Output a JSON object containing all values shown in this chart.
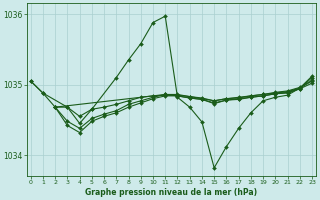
{
  "title": "Graphe pression niveau de la mer (hPa)",
  "bg_color": "#ceeaea",
  "grid_color": "#aacfcf",
  "line_color": "#1a5c1a",
  "marker": "D",
  "markersize": 2.0,
  "linewidth": 0.8,
  "ylim": [
    1033.7,
    1036.15
  ],
  "xlim": [
    -0.3,
    23.3
  ],
  "yticks": [
    1034,
    1035,
    1036
  ],
  "xticks": [
    0,
    1,
    2,
    3,
    4,
    5,
    6,
    7,
    8,
    9,
    10,
    11,
    12,
    13,
    14,
    15,
    16,
    17,
    18,
    19,
    20,
    21,
    22,
    23
  ],
  "series": [
    {
      "x": [
        0,
        1,
        2,
        3,
        4,
        5,
        6,
        7,
        8,
        9,
        10,
        11,
        12,
        13,
        14,
        15,
        16,
        17,
        18,
        19,
        20,
        21,
        22,
        23
      ],
      "y": [
        1035.05,
        1034.88,
        1034.68,
        1034.68,
        1034.55,
        1034.65,
        1034.68,
        1034.72,
        1034.77,
        1034.82,
        1034.84,
        1034.85,
        1034.85,
        1034.83,
        1034.8,
        1034.77,
        1034.8,
        1034.82,
        1034.84,
        1034.86,
        1034.88,
        1034.9,
        1034.95,
        1035.05
      ]
    },
    {
      "x": [
        0,
        1,
        3,
        4,
        5,
        7,
        8,
        9,
        10,
        11,
        12,
        13,
        14,
        15,
        16,
        17,
        18,
        19,
        20,
        21,
        22,
        23
      ],
      "y": [
        1035.05,
        1034.88,
        1034.68,
        1034.45,
        1034.65,
        1035.1,
        1035.35,
        1035.58,
        1035.88,
        1035.97,
        1034.82,
        1034.68,
        1034.47,
        1033.82,
        1034.12,
        1034.38,
        1034.6,
        1034.77,
        1034.82,
        1034.85,
        1034.95,
        1035.12
      ]
    },
    {
      "x": [
        2,
        3,
        4,
        5,
        6,
        7,
        8,
        9,
        10,
        11,
        12,
        13,
        14,
        15,
        16,
        17,
        18,
        19,
        20,
        21,
        22,
        23
      ],
      "y": [
        1034.68,
        1034.42,
        1034.32,
        1034.48,
        1034.55,
        1034.6,
        1034.68,
        1034.74,
        1034.8,
        1034.84,
        1034.84,
        1034.81,
        1034.79,
        1034.74,
        1034.78,
        1034.8,
        1034.82,
        1034.84,
        1034.87,
        1034.89,
        1034.94,
        1035.02
      ]
    },
    {
      "x": [
        2,
        3,
        4,
        5,
        6,
        7,
        8,
        9,
        10,
        11,
        12,
        13,
        14,
        15,
        16,
        17,
        18,
        19,
        20,
        21,
        22,
        23
      ],
      "y": [
        1034.68,
        1034.48,
        1034.38,
        1034.52,
        1034.58,
        1034.63,
        1034.72,
        1034.77,
        1034.82,
        1034.86,
        1034.86,
        1034.83,
        1034.81,
        1034.77,
        1034.8,
        1034.81,
        1034.84,
        1034.86,
        1034.89,
        1034.91,
        1034.96,
        1035.06
      ]
    },
    {
      "x": [
        2,
        11,
        12,
        13,
        14,
        15,
        16,
        17,
        18,
        19,
        20,
        21,
        22,
        23
      ],
      "y": [
        1034.68,
        1034.86,
        1034.84,
        1034.81,
        1034.79,
        1034.73,
        1034.78,
        1034.79,
        1034.82,
        1034.84,
        1034.87,
        1034.88,
        1034.94,
        1035.1
      ]
    }
  ]
}
